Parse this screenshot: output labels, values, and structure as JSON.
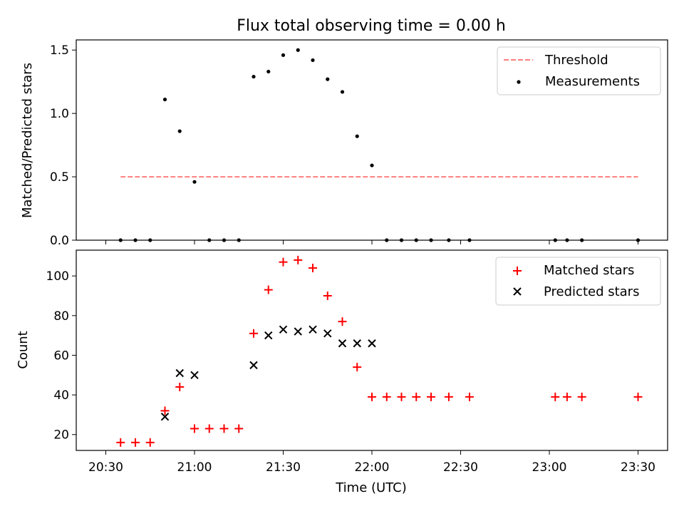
{
  "title": "Flux total observing time = 0.00 h",
  "xlabel": "Time (UTC)",
  "x_tick_labels": [
    "20:30",
    "21:00",
    "21:30",
    "22:00",
    "22:30",
    "23:00",
    "23:30"
  ],
  "chart_data": [
    {
      "type": "scatter",
      "ylabel": "Matched/Predicted stars",
      "ylim": [
        0,
        1.58
      ],
      "y_ticks": [
        "0.0",
        "0.5",
        "1.0",
        "1.5"
      ],
      "grid": false,
      "legend": "top-right",
      "threshold": {
        "name": "Threshold",
        "value": 0.5,
        "x_start": "20:35",
        "x_end": "23:30",
        "color": "#ff7f7f"
      },
      "series": [
        {
          "name": "Measurements",
          "color": "#000000",
          "marker": "dot",
          "points": [
            [
              "20:35",
              0.0
            ],
            [
              "20:40",
              0.0
            ],
            [
              "20:45",
              0.0
            ],
            [
              "20:50",
              1.11
            ],
            [
              "20:55",
              0.86
            ],
            [
              "21:00",
              0.46
            ],
            [
              "21:05",
              0.0
            ],
            [
              "21:10",
              0.0
            ],
            [
              "21:15",
              0.0
            ],
            [
              "21:20",
              1.29
            ],
            [
              "21:25",
              1.33
            ],
            [
              "21:30",
              1.46
            ],
            [
              "21:35",
              1.5
            ],
            [
              "21:40",
              1.42
            ],
            [
              "21:45",
              1.27
            ],
            [
              "21:50",
              1.17
            ],
            [
              "21:55",
              0.82
            ],
            [
              "22:00",
              0.59
            ],
            [
              "22:05",
              0.0
            ],
            [
              "22:10",
              0.0
            ],
            [
              "22:15",
              0.0
            ],
            [
              "22:20",
              0.0
            ],
            [
              "22:26",
              0.0
            ],
            [
              "22:33",
              0.0
            ],
            [
              "23:02",
              0.0
            ],
            [
              "23:06",
              0.0
            ],
            [
              "23:11",
              0.0
            ],
            [
              "23:30",
              0.0
            ]
          ]
        }
      ]
    },
    {
      "type": "scatter",
      "ylabel": "Count",
      "ylim": [
        12,
        113
      ],
      "y_ticks": [
        "20",
        "40",
        "60",
        "80",
        "100"
      ],
      "grid": false,
      "legend": "top-right",
      "series": [
        {
          "name": "Matched stars",
          "color": "#ff0000",
          "marker": "plus",
          "points": [
            [
              "20:35",
              16
            ],
            [
              "20:40",
              16
            ],
            [
              "20:45",
              16
            ],
            [
              "20:50",
              32
            ],
            [
              "20:55",
              44
            ],
            [
              "21:00",
              23
            ],
            [
              "21:05",
              23
            ],
            [
              "21:10",
              23
            ],
            [
              "21:15",
              23
            ],
            [
              "21:20",
              71
            ],
            [
              "21:25",
              93
            ],
            [
              "21:30",
              107
            ],
            [
              "21:35",
              108
            ],
            [
              "21:40",
              104
            ],
            [
              "21:45",
              90
            ],
            [
              "21:50",
              77
            ],
            [
              "21:55",
              54
            ],
            [
              "22:00",
              39
            ],
            [
              "22:05",
              39
            ],
            [
              "22:10",
              39
            ],
            [
              "22:15",
              39
            ],
            [
              "22:20",
              39
            ],
            [
              "22:26",
              39
            ],
            [
              "22:33",
              39
            ],
            [
              "23:02",
              39
            ],
            [
              "23:06",
              39
            ],
            [
              "23:11",
              39
            ],
            [
              "23:30",
              39
            ]
          ]
        },
        {
          "name": "Predicted stars",
          "color": "#000000",
          "marker": "x",
          "points": [
            [
              "20:50",
              29
            ],
            [
              "20:55",
              51
            ],
            [
              "21:00",
              50
            ],
            [
              "21:20",
              55
            ],
            [
              "21:25",
              70
            ],
            [
              "21:30",
              73
            ],
            [
              "21:35",
              72
            ],
            [
              "21:40",
              73
            ],
            [
              "21:45",
              71
            ],
            [
              "21:50",
              66
            ],
            [
              "21:55",
              66
            ],
            [
              "22:00",
              66
            ]
          ]
        }
      ]
    }
  ]
}
